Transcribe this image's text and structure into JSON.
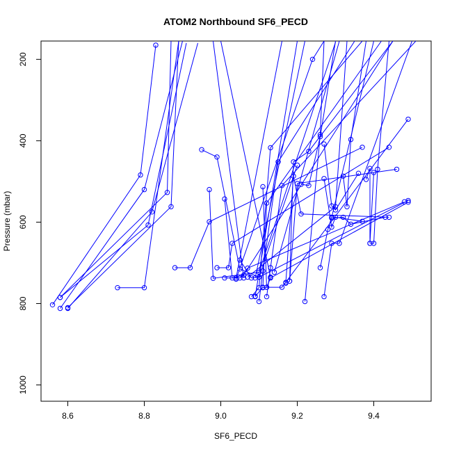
{
  "chart_data": {
    "type": "scatter",
    "title": "ATOM2 Northbound SF6_PECD",
    "xlabel": "SF6_PECD",
    "ylabel": "Pressure (mbar)",
    "xlim": [
      8.53,
      9.55
    ],
    "ylim": [
      1040,
      155
    ],
    "y_reversed": true,
    "x_ticks": [
      "8.6",
      "8.8",
      "9.0",
      "9.2",
      "9.4"
    ],
    "y_ticks": [
      "200",
      "400",
      "600",
      "800",
      "1000"
    ],
    "grid": false,
    "legend": "none",
    "color": "#0000ff",
    "style": "points connected by lines",
    "series": [
      {
        "points": [
          [
            8.56,
            803
          ],
          [
            8.79,
            484
          ],
          [
            8.83,
            165
          ]
        ]
      },
      {
        "points": [
          [
            8.58,
            812
          ],
          [
            8.8,
            520
          ],
          [
            8.9,
            155
          ]
        ]
      },
      {
        "points": [
          [
            8.58,
            785
          ],
          [
            8.81,
            607
          ],
          [
            8.91,
            160
          ]
        ]
      },
      {
        "points": [
          [
            8.6,
            812
          ],
          [
            8.82,
            575
          ],
          [
            8.94,
            160
          ]
        ]
      },
      {
        "points": [
          [
            8.58,
            785
          ],
          [
            8.86,
            527
          ],
          [
            8.87,
            155
          ]
        ]
      },
      {
        "points": [
          [
            8.6,
            810
          ],
          [
            8.87,
            562
          ],
          [
            8.89,
            155
          ]
        ]
      },
      {
        "points": [
          [
            8.73,
            761
          ],
          [
            8.8,
            761
          ],
          [
            8.89,
            155
          ]
        ]
      },
      {
        "points": [
          [
            8.88,
            712
          ],
          [
            8.92,
            712
          ],
          [
            8.97,
            599
          ],
          [
            9.37,
            416
          ]
        ]
      },
      {
        "points": [
          [
            8.95,
            422
          ],
          [
            8.99,
            440
          ],
          [
            9.05,
            715
          ],
          [
            9.1,
            735
          ],
          [
            9.2,
            460
          ]
        ]
      },
      {
        "points": [
          [
            8.97,
            520
          ],
          [
            8.98,
            738
          ],
          [
            9.1,
            723
          ],
          [
            9.3,
            158
          ]
        ]
      },
      {
        "points": [
          [
            8.99,
            712
          ],
          [
            9.02,
            712
          ],
          [
            9.03,
            652
          ],
          [
            9.44,
            416
          ]
        ]
      },
      {
        "points": [
          [
            9.01,
            543
          ],
          [
            9.03,
            737
          ],
          [
            9.06,
            730
          ],
          [
            9.45,
            155
          ]
        ]
      },
      {
        "points": [
          [
            9.01,
            737
          ],
          [
            9.05,
            737
          ],
          [
            9.07,
            713
          ],
          [
            9.48,
            550
          ]
        ]
      },
      {
        "points": [
          [
            9.05,
            693
          ],
          [
            9.08,
            737
          ],
          [
            9.1,
            735
          ],
          [
            9.49,
            547
          ]
        ]
      },
      {
        "points": [
          [
            9.08,
            783
          ],
          [
            9.1,
            761
          ],
          [
            9.13,
            417
          ],
          [
            9.37,
            155
          ]
        ]
      },
      {
        "points": [
          [
            9.09,
            783
          ],
          [
            9.11,
            760
          ],
          [
            9.12,
            553
          ],
          [
            9.42,
            155
          ]
        ]
      },
      {
        "points": [
          [
            9.1,
            795
          ],
          [
            9.11,
            720
          ],
          [
            9.15,
            452
          ],
          [
            9.35,
            155
          ]
        ]
      },
      {
        "points": [
          [
            9.11,
            761
          ],
          [
            9.12,
            760
          ],
          [
            9.13,
            737
          ],
          [
            9.49,
            551
          ]
        ]
      },
      {
        "points": [
          [
            9.12,
            783
          ],
          [
            9.13,
            712
          ],
          [
            9.16,
            510
          ],
          [
            9.51,
            155
          ]
        ]
      },
      {
        "points": [
          [
            9.11,
            513
          ],
          [
            9.12,
            760
          ],
          [
            9.16,
            760
          ],
          [
            9.49,
            347
          ]
        ]
      },
      {
        "points": [
          [
            9.17,
            750
          ],
          [
            9.18,
            745
          ],
          [
            9.2,
            505
          ],
          [
            9.46,
            470
          ]
        ]
      },
      {
        "points": [
          [
            9.17,
            748
          ],
          [
            9.19,
            487
          ],
          [
            9.21,
            580
          ],
          [
            9.44,
            588
          ]
        ]
      },
      {
        "points": [
          [
            9.18,
            745
          ],
          [
            9.19,
            452
          ],
          [
            9.23,
            426
          ],
          [
            9.45,
            155
          ]
        ]
      },
      {
        "points": [
          [
            9.22,
            795
          ],
          [
            9.26,
            385
          ],
          [
            9.27,
            155
          ]
        ]
      },
      {
        "points": [
          [
            9.21,
            507
          ],
          [
            9.23,
            510
          ],
          [
            9.26,
            390
          ],
          [
            9.3,
            155
          ]
        ]
      },
      {
        "points": [
          [
            9.26,
            712
          ],
          [
            9.28,
            618
          ],
          [
            9.29,
            588
          ],
          [
            9.4,
            155
          ]
        ]
      },
      {
        "points": [
          [
            9.27,
            783
          ],
          [
            9.29,
            652
          ],
          [
            9.31,
            652
          ],
          [
            9.5,
            155
          ]
        ]
      },
      {
        "points": [
          [
            9.27,
            408
          ],
          [
            9.29,
            560
          ],
          [
            9.3,
            570
          ],
          [
            9.36,
            480
          ]
        ]
      },
      {
        "points": [
          [
            9.27,
            493
          ],
          [
            9.29,
            612
          ],
          [
            9.3,
            588
          ],
          [
            9.37,
            598
          ]
        ]
      },
      {
        "points": [
          [
            9.29,
            590
          ],
          [
            9.32,
            588
          ],
          [
            9.34,
            605
          ],
          [
            9.43,
            588
          ]
        ]
      },
      {
        "points": [
          [
            9.32,
            487
          ],
          [
            9.33,
            562
          ],
          [
            9.34,
            397
          ],
          [
            9.38,
            155
          ]
        ]
      },
      {
        "points": [
          [
            9.38,
            495
          ],
          [
            9.39,
            468
          ],
          [
            9.39,
            652
          ],
          [
            9.4,
            478
          ]
        ]
      },
      {
        "points": [
          [
            9.39,
            652
          ],
          [
            9.4,
            652
          ],
          [
            9.41,
            470
          ],
          [
            9.44,
            155
          ]
        ]
      },
      {
        "points": [
          [
            9.07,
            735
          ],
          [
            9.3,
            562
          ],
          [
            9.33,
            155
          ]
        ]
      },
      {
        "points": [
          [
            9.04,
            740
          ],
          [
            9.24,
            200
          ],
          [
            9.27,
            155
          ]
        ]
      },
      {
        "points": [
          [
            9.06,
            737
          ],
          [
            8.98,
            155
          ]
        ]
      },
      {
        "points": [
          [
            9.13,
            735
          ],
          [
            9.0,
            155
          ]
        ]
      },
      {
        "points": [
          [
            9.09,
            737
          ],
          [
            9.22,
            155
          ]
        ]
      },
      {
        "points": [
          [
            9.14,
            723
          ],
          [
            9.31,
            155
          ]
        ]
      },
      {
        "points": [
          [
            9.04,
            737
          ],
          [
            9.16,
            155
          ]
        ]
      },
      {
        "points": [
          [
            9.09,
            782
          ],
          [
            9.2,
            155
          ]
        ]
      }
    ]
  }
}
